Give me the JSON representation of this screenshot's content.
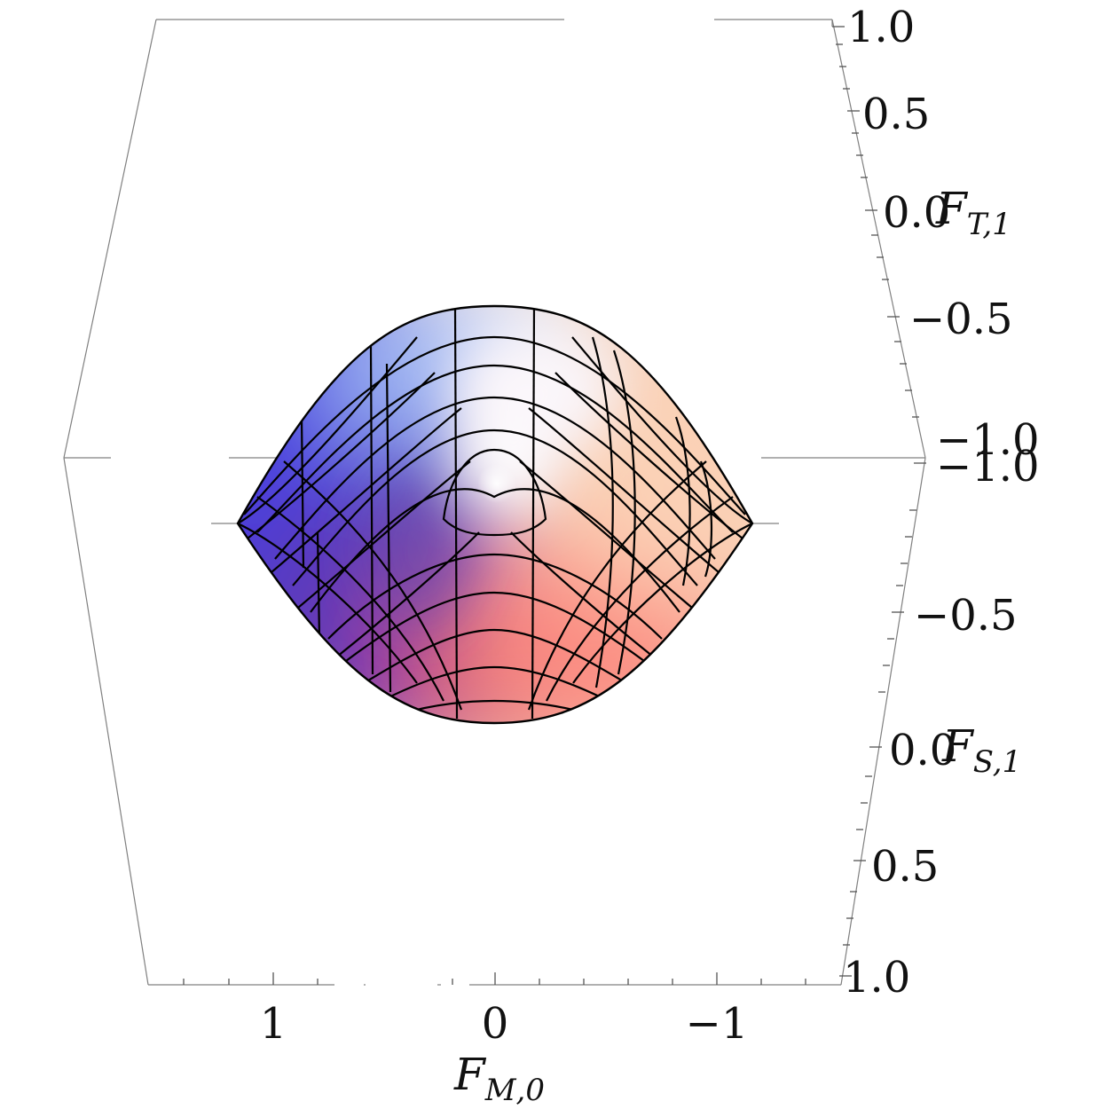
{
  "figure": {
    "axes": {
      "x": {
        "label_main": "F",
        "label_sub": "M,0",
        "ticks": [
          "1",
          "0",
          "−1"
        ]
      },
      "y_top": {
        "label_main": "F",
        "label_sub": "T,1",
        "ticks": [
          "1.0",
          "0.5",
          "0.0",
          "−0.5",
          "−1.0"
        ]
      },
      "y_bottom": {
        "label_main": "F",
        "label_sub": "S,1",
        "ticks": [
          "−1.0",
          "−0.5",
          "0.0",
          "0.5",
          "1.0"
        ]
      }
    },
    "colors": {
      "blue": "#4a3fe0",
      "pale": "#ffffff",
      "peach": "#f7c7a6",
      "magenta": "#b03a7a",
      "salmon": "#fb8a80"
    }
  }
}
